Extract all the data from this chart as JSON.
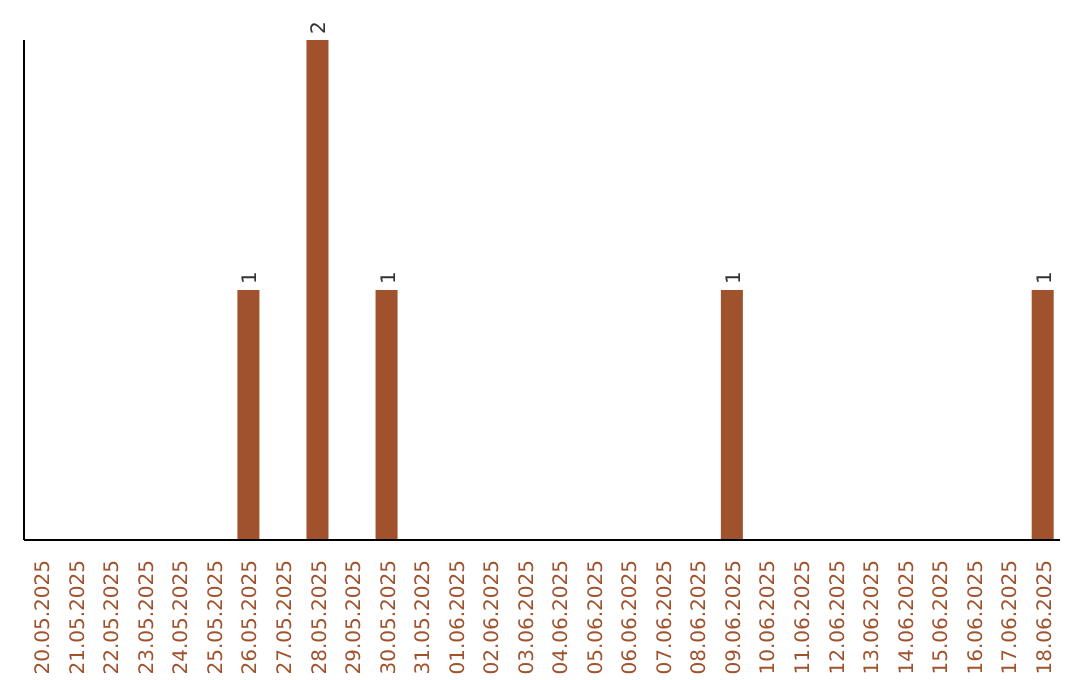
{
  "chart_data": {
    "type": "bar",
    "categories": [
      "20.05.2025",
      "21.05.2025",
      "22.05.2025",
      "23.05.2025",
      "24.05.2025",
      "25.05.2025",
      "26.05.2025",
      "27.05.2025",
      "28.05.2025",
      "29.05.2025",
      "30.05.2025",
      "31.05.2025",
      "01.06.2025",
      "02.06.2025",
      "03.06.2025",
      "04.06.2025",
      "05.06.2025",
      "06.06.2025",
      "07.06.2025",
      "08.06.2025",
      "09.06.2025",
      "10.06.2025",
      "11.06.2025",
      "12.06.2025",
      "13.06.2025",
      "14.06.2025",
      "15.06.2025",
      "16.06.2025",
      "17.06.2025",
      "18.06.2025"
    ],
    "values": [
      0,
      0,
      0,
      0,
      0,
      0,
      1,
      0,
      2,
      0,
      1,
      0,
      0,
      0,
      0,
      0,
      0,
      0,
      0,
      0,
      1,
      0,
      0,
      0,
      0,
      0,
      0,
      0,
      0,
      1
    ],
    "value_labels": [
      null,
      null,
      null,
      null,
      null,
      null,
      "1",
      null,
      "2",
      null,
      "1",
      null,
      null,
      null,
      null,
      null,
      null,
      null,
      null,
      null,
      "1",
      null,
      null,
      null,
      null,
      null,
      null,
      null,
      null,
      "1"
    ],
    "color": "#a0522d"
  }
}
